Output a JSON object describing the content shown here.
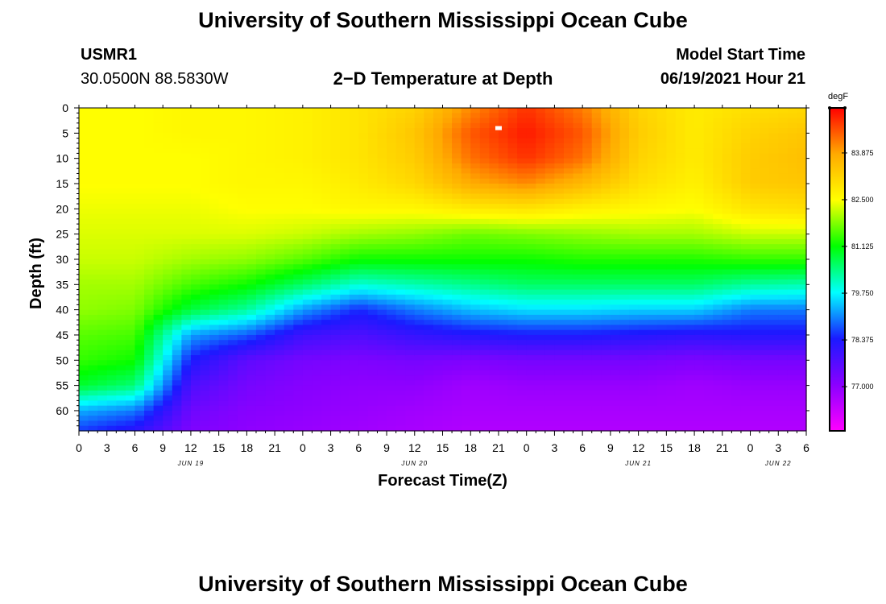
{
  "header": {
    "top_title": "University of Southern Mississippi Ocean Cube",
    "bottom_title": "University of Southern Mississippi Ocean Cube",
    "station_id": "USMR1",
    "coordinates": "30.0500N  88.5830W",
    "plot_title": "2−D Temperature at Depth",
    "start_label": "Model Start Time",
    "start_value": "06/19/2021 Hour 21"
  },
  "chart_data": {
    "type": "heatmap",
    "title": "2−D Temperature at Depth",
    "xlabel": "Forecast Time(Z)",
    "ylabel": "Depth (ft)",
    "x_hours_range": [
      0,
      78
    ],
    "x_tick_labels": [
      "0",
      "3",
      "6",
      "9",
      "12",
      "15",
      "18",
      "21",
      "0",
      "3",
      "6",
      "9",
      "12",
      "15",
      "18",
      "21",
      "0",
      "3",
      "6",
      "9",
      "12",
      "15",
      "18",
      "21",
      "0",
      "3",
      "6"
    ],
    "x_date_labels": [
      {
        "label": "JUN 19",
        "hour": 12
      },
      {
        "label": "JUN 20",
        "hour": 36
      },
      {
        "label": "JUN 21",
        "hour": 60
      },
      {
        "label": "JUN 22",
        "hour": 75
      }
    ],
    "y_tick_labels": [
      "0",
      "5",
      "10",
      "15",
      "20",
      "25",
      "30",
      "35",
      "40",
      "45",
      "50",
      "55",
      "60"
    ],
    "ylim": [
      0,
      64
    ],
    "colorbar": {
      "unit": "degF",
      "range": [
        75.7,
        85.2
      ],
      "tick_labels": [
        "83.875",
        "82.500",
        "81.125",
        "79.750",
        "78.375",
        "77.000"
      ],
      "tick_values": [
        83.875,
        82.5,
        81.125,
        79.75,
        78.375,
        77.0
      ],
      "colors_low_to_high": [
        "#ff00ff",
        "#8a00ff",
        "#1a1aff",
        "#00ffff",
        "#00ff00",
        "#ffff00",
        "#ffaa00",
        "#ff0000"
      ]
    },
    "depth_levels_ft": [
      0,
      5,
      10,
      15,
      20,
      25,
      30,
      35,
      40,
      45,
      50,
      55,
      60,
      64
    ],
    "series": [
      {
        "hour": 0,
        "temps": [
          82.5,
          82.5,
          82.5,
          82.5,
          82.4,
          82.3,
          82.2,
          82.0,
          81.9,
          81.6,
          81.4,
          80.9,
          79.3,
          78.6
        ]
      },
      {
        "hour": 6,
        "temps": [
          82.5,
          82.5,
          82.5,
          82.5,
          82.4,
          82.3,
          82.2,
          82.0,
          81.8,
          81.5,
          81.2,
          80.5,
          79.0,
          78.2
        ]
      },
      {
        "hour": 12,
        "temps": [
          82.6,
          82.6,
          82.5,
          82.5,
          82.4,
          82.3,
          82.0,
          81.5,
          80.8,
          79.2,
          78.4,
          77.8,
          77.4,
          77.2
        ]
      },
      {
        "hour": 18,
        "temps": [
          82.6,
          82.6,
          82.6,
          82.6,
          82.5,
          82.3,
          81.9,
          81.2,
          80.3,
          78.8,
          77.6,
          77.3,
          77.1,
          77.0
        ]
      },
      {
        "hour": 24,
        "temps": [
          82.7,
          82.7,
          82.7,
          82.6,
          82.5,
          82.2,
          81.6,
          80.6,
          79.2,
          78.0,
          77.3,
          77.1,
          77.0,
          76.9
        ]
      },
      {
        "hour": 30,
        "temps": [
          82.9,
          82.9,
          82.9,
          82.8,
          82.6,
          82.0,
          81.2,
          80.0,
          78.5,
          77.8,
          77.2,
          77.0,
          76.9,
          76.8
        ]
      },
      {
        "hour": 36,
        "temps": [
          83.2,
          83.4,
          83.3,
          83.1,
          82.6,
          81.9,
          81.2,
          80.2,
          79.0,
          78.1,
          77.3,
          77.0,
          76.8,
          76.7
        ]
      },
      {
        "hour": 42,
        "temps": [
          84.1,
          84.5,
          84.3,
          83.8,
          82.8,
          81.7,
          81.2,
          80.4,
          79.4,
          78.3,
          77.2,
          76.8,
          76.7,
          76.6
        ]
      },
      {
        "hour": 48,
        "temps": [
          84.8,
          85.0,
          84.8,
          84.1,
          82.9,
          81.8,
          81.2,
          80.6,
          79.6,
          78.4,
          77.3,
          76.9,
          76.7,
          76.6
        ]
      },
      {
        "hour": 54,
        "temps": [
          84.2,
          84.5,
          84.3,
          83.6,
          82.7,
          81.9,
          81.3,
          80.6,
          79.6,
          78.4,
          77.3,
          76.9,
          76.7,
          76.6
        ]
      },
      {
        "hour": 60,
        "temps": [
          83.2,
          83.3,
          83.2,
          83.0,
          82.6,
          82.0,
          81.3,
          80.6,
          79.5,
          78.3,
          77.3,
          76.9,
          76.7,
          76.6
        ]
      },
      {
        "hour": 66,
        "temps": [
          82.8,
          82.8,
          82.8,
          82.7,
          82.5,
          82.0,
          81.3,
          80.6,
          79.5,
          78.2,
          77.2,
          76.8,
          76.7,
          76.6
        ]
      },
      {
        "hour": 72,
        "temps": [
          83.0,
          83.2,
          83.3,
          83.3,
          82.9,
          82.2,
          81.4,
          80.3,
          79.0,
          78.3,
          77.3,
          76.9,
          76.7,
          76.6
        ]
      },
      {
        "hour": 78,
        "temps": [
          83.1,
          83.4,
          83.5,
          83.4,
          83.0,
          82.2,
          81.4,
          80.2,
          79.0,
          78.3,
          77.3,
          76.9,
          76.7,
          76.6
        ]
      }
    ],
    "annotations": [
      {
        "type": "marker",
        "hour": 45,
        "depth_ft": 4,
        "color": "#ffffff"
      }
    ]
  }
}
